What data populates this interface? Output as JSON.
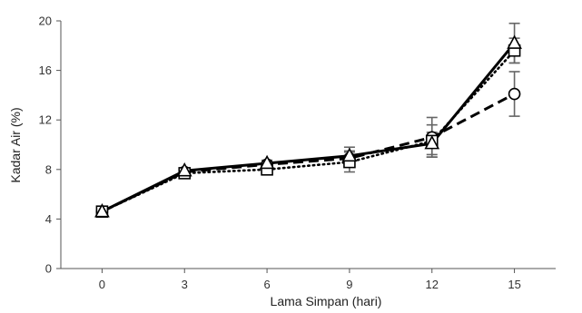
{
  "chart_data": {
    "type": "line",
    "title": "",
    "xlabel": "Lama Simpan (hari)",
    "ylabel": "Kadar Air (%)",
    "x": [
      0,
      3,
      6,
      9,
      12,
      15
    ],
    "xlim": [
      -1.5,
      16.5
    ],
    "ylim": [
      0,
      20
    ],
    "yticks": [
      0,
      4,
      8,
      12,
      16,
      20
    ],
    "grid": false,
    "series": [
      {
        "marker": "circle",
        "line_style": "dashed",
        "color": "#000000",
        "values": [
          4.6,
          7.8,
          8.4,
          8.9,
          10.6,
          14.1
        ],
        "errors": [
          0.15,
          0.2,
          0.25,
          0.6,
          1.6,
          1.8
        ]
      },
      {
        "marker": "square",
        "line_style": "dotted",
        "color": "#000000",
        "values": [
          4.6,
          7.7,
          8.0,
          8.6,
          10.3,
          17.6
        ],
        "errors": [
          0.15,
          0.2,
          0.3,
          0.8,
          1.3,
          1.0
        ]
      },
      {
        "marker": "triangle",
        "line_style": "solid",
        "color": "#000000",
        "values": [
          4.6,
          7.9,
          8.5,
          9.1,
          10.1,
          18.2
        ],
        "errors": [
          0.15,
          0.2,
          0.25,
          0.7,
          0.9,
          1.6
        ]
      }
    ],
    "error_bar_color": "#666666"
  }
}
